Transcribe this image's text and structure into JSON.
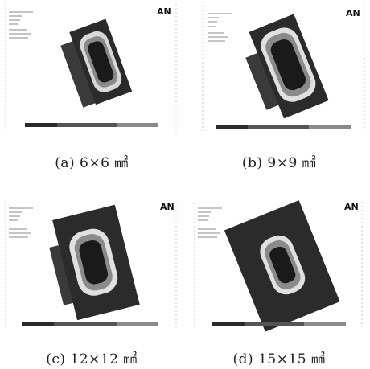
{
  "figure": {
    "panels": [
      {
        "id": "a",
        "caption": "(a) 6×6 ㎟",
        "logo": "AN",
        "variant": "small"
      },
      {
        "id": "b",
        "caption": "(b) 9×9 ㎟",
        "logo": "AN",
        "variant": "medium"
      },
      {
        "id": "c",
        "caption": "(c) 12×12 ㎟",
        "logo": "AN",
        "variant": "large"
      },
      {
        "id": "d",
        "caption": "(d) 15×15 ㎟",
        "logo": "AN",
        "variant": "xlarge"
      }
    ],
    "colors": {
      "background": "#ffffff",
      "plate": "#333333",
      "contour_dark": "#1a1a1a",
      "contour_mid": "#8c8c8c",
      "contour_light": "#e6e6e6",
      "legend_bar": "#555555"
    }
  }
}
